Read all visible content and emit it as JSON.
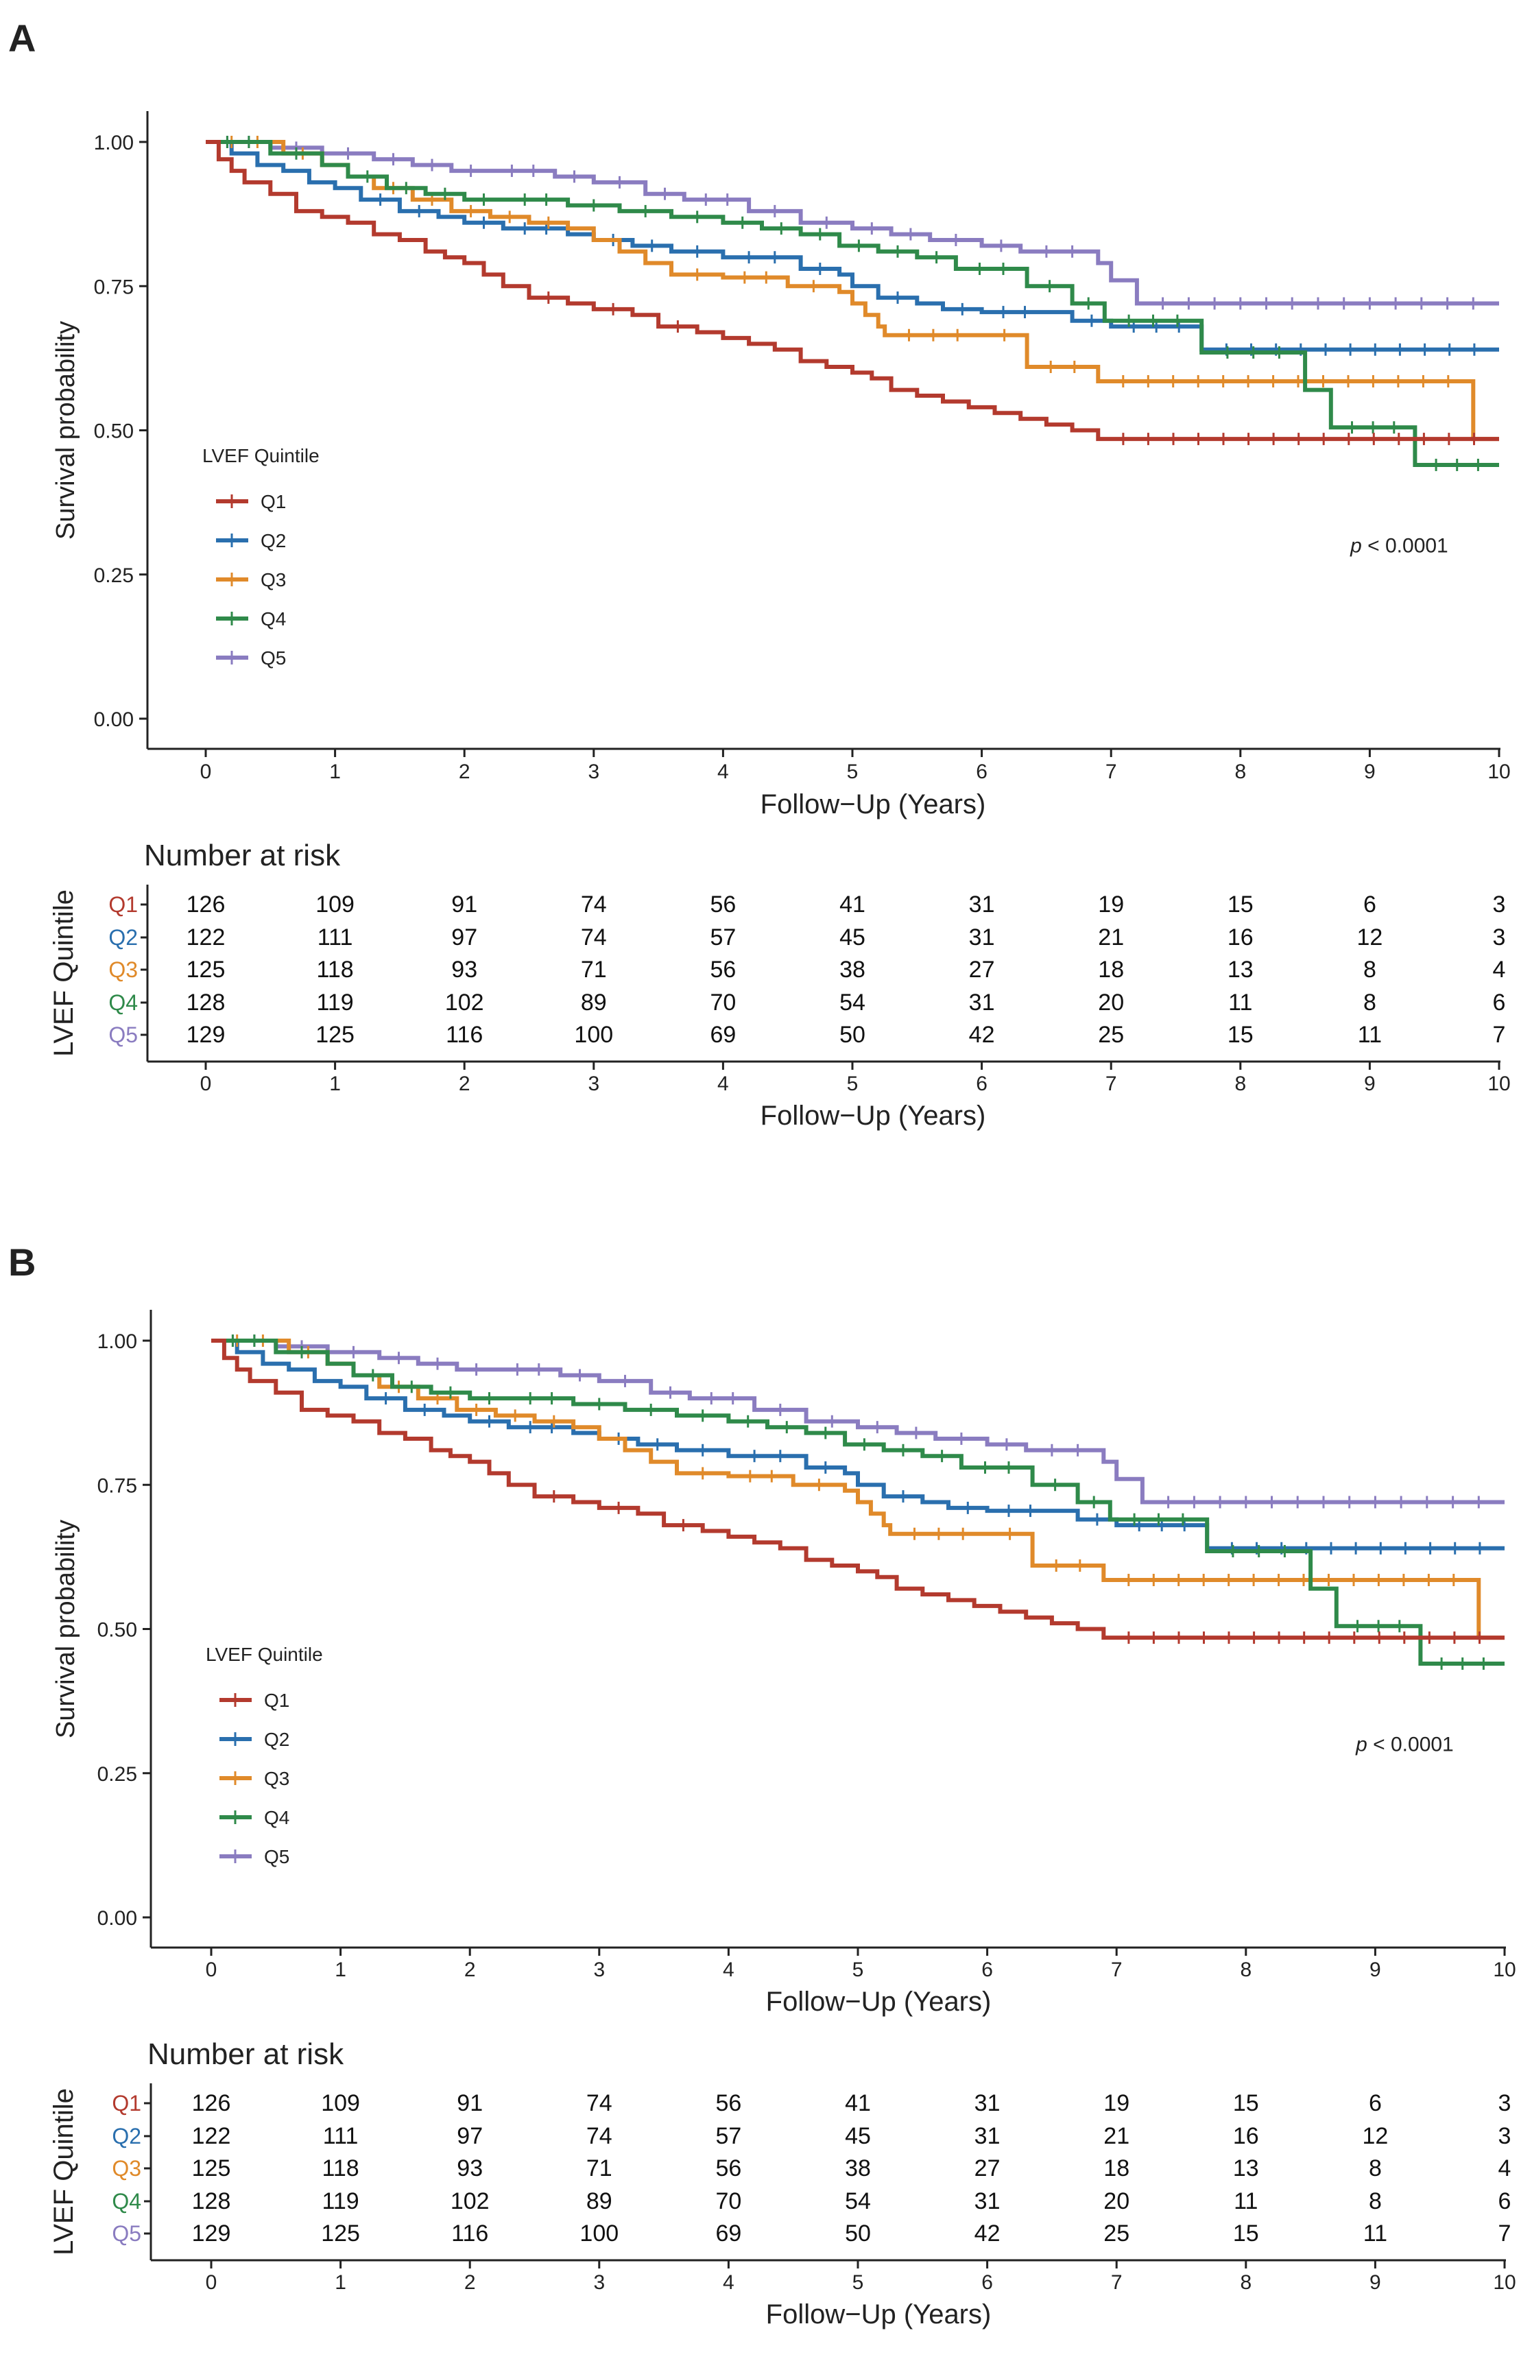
{
  "colors": {
    "Q1": "#b33a2e",
    "Q2": "#2a6fae",
    "Q3": "#e08a2a",
    "Q4": "#2f8a4a",
    "Q5": "#8a7cc0",
    "axis": "#222222"
  },
  "panels": [
    {
      "label": "A",
      "ylabel": "Survival probability",
      "xlabel": "Follow−Up (Years)",
      "legend_title": "LVEF Quintile",
      "legend": [
        "Q1",
        "Q2",
        "Q3",
        "Q4",
        "Q5"
      ],
      "pvalue_p": "p",
      "pvalue_rest": " < 0.0001",
      "yticks": [
        "0.00",
        "0.25",
        "0.50",
        "0.75",
        "1.00"
      ],
      "xticks": [
        "0",
        "1",
        "2",
        "3",
        "4",
        "5",
        "6",
        "7",
        "8",
        "9",
        "10"
      ],
      "risk_title": "Number at risk",
      "risk_ylabel": "LVEF Quintile",
      "risk_xlabel": "Follow−Up (Years)"
    },
    {
      "label": "B",
      "ylabel": "Survival probability",
      "xlabel": "Follow−Up (Years)",
      "legend_title": "LVEF Quintile",
      "legend": [
        "Q1",
        "Q2",
        "Q3",
        "Q4",
        "Q5"
      ],
      "pvalue_p": "p",
      "pvalue_rest": " < 0.0001",
      "yticks": [
        "0.00",
        "0.25",
        "0.50",
        "0.75",
        "1.00"
      ],
      "xticks": [
        "0",
        "1",
        "2",
        "3",
        "4",
        "5",
        "6",
        "7",
        "8",
        "9",
        "10"
      ],
      "risk_title": "Number at risk",
      "risk_ylabel": "LVEF Quintile",
      "risk_xlabel": "Follow−Up (Years)"
    }
  ],
  "chart_data": [
    {
      "type": "line",
      "title": "A",
      "xlabel": "Follow-Up (Years)",
      "ylabel": "Survival probability",
      "xlim": [
        0,
        10
      ],
      "ylim": [
        0,
        1
      ],
      "series": [
        {
          "name": "Q1",
          "x": [
            0,
            0.1,
            0.2,
            0.3,
            0.5,
            0.7,
            0.9,
            1.1,
            1.3,
            1.5,
            1.7,
            1.85,
            2.0,
            2.15,
            2.3,
            2.5,
            2.8,
            3.0,
            3.3,
            3.5,
            3.8,
            4.0,
            4.2,
            4.4,
            4.6,
            4.8,
            5.0,
            5.15,
            5.3,
            5.5,
            5.7,
            5.9,
            6.1,
            6.3,
            6.5,
            6.7,
            6.9,
            10
          ],
          "y": [
            1,
            0.97,
            0.95,
            0.93,
            0.91,
            0.88,
            0.87,
            0.86,
            0.84,
            0.83,
            0.81,
            0.8,
            0.79,
            0.77,
            0.75,
            0.73,
            0.72,
            0.71,
            0.7,
            0.68,
            0.67,
            0.66,
            0.65,
            0.64,
            0.62,
            0.61,
            0.6,
            0.59,
            0.57,
            0.56,
            0.55,
            0.54,
            0.53,
            0.52,
            0.51,
            0.5,
            0.485,
            0.485
          ]
        },
        {
          "name": "Q2",
          "x": [
            0,
            0.2,
            0.4,
            0.6,
            0.8,
            1.0,
            1.2,
            1.5,
            1.8,
            2.0,
            2.3,
            2.8,
            3.0,
            3.3,
            3.6,
            4.0,
            4.6,
            4.9,
            5.0,
            5.2,
            5.5,
            5.7,
            6.0,
            6.5,
            6.7,
            7.0,
            7.7,
            10
          ],
          "y": [
            1,
            0.98,
            0.96,
            0.95,
            0.93,
            0.92,
            0.9,
            0.88,
            0.87,
            0.86,
            0.85,
            0.84,
            0.83,
            0.82,
            0.81,
            0.8,
            0.78,
            0.77,
            0.75,
            0.73,
            0.72,
            0.71,
            0.705,
            0.705,
            0.69,
            0.68,
            0.64,
            0.64
          ]
        },
        {
          "name": "Q3",
          "x": [
            0,
            0.6,
            0.9,
            1.1,
            1.3,
            1.6,
            1.9,
            2.2,
            2.5,
            2.8,
            3.0,
            3.2,
            3.4,
            3.6,
            4.0,
            4.5,
            4.9,
            5.0,
            5.1,
            5.2,
            5.25,
            6.0,
            6.35,
            6.9,
            9.8,
            10
          ],
          "y": [
            1,
            0.98,
            0.96,
            0.94,
            0.92,
            0.9,
            0.88,
            0.87,
            0.86,
            0.85,
            0.83,
            0.81,
            0.79,
            0.77,
            0.765,
            0.75,
            0.74,
            0.72,
            0.7,
            0.68,
            0.665,
            0.665,
            0.61,
            0.585,
            0.485,
            0.485
          ]
        },
        {
          "name": "Q4",
          "x": [
            0,
            0.5,
            0.9,
            1.1,
            1.4,
            1.7,
            2.0,
            2.3,
            2.8,
            3.2,
            3.6,
            4.0,
            4.3,
            4.6,
            4.9,
            5.2,
            5.5,
            5.8,
            6.35,
            6.7,
            6.95,
            7.7,
            8.5,
            8.7,
            9.35,
            10
          ],
          "y": [
            1,
            0.98,
            0.96,
            0.94,
            0.92,
            0.91,
            0.9,
            0.9,
            0.89,
            0.88,
            0.87,
            0.86,
            0.85,
            0.84,
            0.82,
            0.81,
            0.8,
            0.78,
            0.75,
            0.72,
            0.69,
            0.635,
            0.57,
            0.505,
            0.44,
            0.44
          ]
        },
        {
          "name": "Q5",
          "x": [
            0,
            0.5,
            0.9,
            1.3,
            1.6,
            1.9,
            2.2,
            2.7,
            3.0,
            3.4,
            3.7,
            4.2,
            4.6,
            5.0,
            5.3,
            5.6,
            6.0,
            6.3,
            6.9,
            7.0,
            7.2,
            10
          ],
          "y": [
            1,
            0.99,
            0.98,
            0.97,
            0.96,
            0.95,
            0.95,
            0.94,
            0.93,
            0.91,
            0.9,
            0.88,
            0.86,
            0.85,
            0.84,
            0.83,
            0.82,
            0.81,
            0.79,
            0.76,
            0.72,
            0.72
          ]
        }
      ],
      "annotation": "p < 0.0001",
      "risk_table": {
        "time": [
          0,
          1,
          2,
          3,
          4,
          5,
          6,
          7,
          8,
          9,
          10
        ],
        "rows": [
          {
            "name": "Q1",
            "values": [
              "126",
              "109",
              "91",
              "74",
              "56",
              "41",
              "31",
              "19",
              "15",
              "6",
              "3"
            ]
          },
          {
            "name": "Q2",
            "values": [
              "122",
              "111",
              "97",
              "74",
              "57",
              "45",
              "31",
              "21",
              "16",
              "12",
              "3"
            ]
          },
          {
            "name": "Q3",
            "values": [
              "125",
              "118",
              "93",
              "71",
              "56",
              "38",
              "27",
              "18",
              "13",
              "8",
              "4"
            ]
          },
          {
            "name": "Q4",
            "values": [
              "128",
              "119",
              "102",
              "89",
              "70",
              "54",
              "31",
              "20",
              "11",
              "8",
              "6"
            ]
          },
          {
            "name": "Q5",
            "values": [
              "129",
              "125",
              "116",
              "100",
              "69",
              "50",
              "42",
              "25",
              "15",
              "11",
              "7"
            ]
          }
        ]
      }
    },
    {
      "type": "line",
      "title": "B",
      "xlabel": "Follow-Up (Years)",
      "ylabel": "Survival probability",
      "xlim": [
        0,
        10
      ],
      "ylim": [
        0,
        1
      ],
      "series": [
        {
          "name": "Q1",
          "x": [
            0,
            0.1,
            0.2,
            0.3,
            0.5,
            0.7,
            0.9,
            1.1,
            1.3,
            1.5,
            1.7,
            1.85,
            2.0,
            2.15,
            2.3,
            2.5,
            2.8,
            3.0,
            3.3,
            3.5,
            3.8,
            4.0,
            4.2,
            4.4,
            4.6,
            4.8,
            5.0,
            5.15,
            5.3,
            5.5,
            5.7,
            5.9,
            6.1,
            6.3,
            6.5,
            6.7,
            6.9,
            10
          ],
          "y": [
            1,
            0.97,
            0.95,
            0.93,
            0.91,
            0.88,
            0.87,
            0.86,
            0.84,
            0.83,
            0.81,
            0.8,
            0.79,
            0.77,
            0.75,
            0.73,
            0.72,
            0.71,
            0.7,
            0.68,
            0.67,
            0.66,
            0.65,
            0.64,
            0.62,
            0.61,
            0.6,
            0.59,
            0.57,
            0.56,
            0.55,
            0.54,
            0.53,
            0.52,
            0.51,
            0.5,
            0.485,
            0.485
          ]
        },
        {
          "name": "Q2",
          "x": [
            0,
            0.2,
            0.4,
            0.6,
            0.8,
            1.0,
            1.2,
            1.5,
            1.8,
            2.0,
            2.3,
            2.8,
            3.0,
            3.3,
            3.6,
            4.0,
            4.6,
            4.9,
            5.0,
            5.2,
            5.5,
            5.7,
            6.0,
            6.5,
            6.7,
            7.0,
            7.7,
            10
          ],
          "y": [
            1,
            0.98,
            0.96,
            0.95,
            0.93,
            0.92,
            0.9,
            0.88,
            0.87,
            0.86,
            0.85,
            0.84,
            0.83,
            0.82,
            0.81,
            0.8,
            0.78,
            0.77,
            0.75,
            0.73,
            0.72,
            0.71,
            0.705,
            0.705,
            0.69,
            0.68,
            0.64,
            0.64
          ]
        },
        {
          "name": "Q3",
          "x": [
            0,
            0.6,
            0.9,
            1.1,
            1.3,
            1.6,
            1.9,
            2.2,
            2.5,
            2.8,
            3.0,
            3.2,
            3.4,
            3.6,
            4.0,
            4.5,
            4.9,
            5.0,
            5.1,
            5.2,
            5.25,
            6.0,
            6.35,
            6.9,
            9.8,
            10
          ],
          "y": [
            1,
            0.98,
            0.96,
            0.94,
            0.92,
            0.9,
            0.88,
            0.87,
            0.86,
            0.85,
            0.83,
            0.81,
            0.79,
            0.77,
            0.765,
            0.75,
            0.74,
            0.72,
            0.7,
            0.68,
            0.665,
            0.665,
            0.61,
            0.585,
            0.485,
            0.485
          ]
        },
        {
          "name": "Q4",
          "x": [
            0,
            0.5,
            0.9,
            1.1,
            1.4,
            1.7,
            2.0,
            2.3,
            2.8,
            3.2,
            3.6,
            4.0,
            4.3,
            4.6,
            4.9,
            5.2,
            5.5,
            5.8,
            6.35,
            6.7,
            6.95,
            7.7,
            8.5,
            8.7,
            9.35,
            10
          ],
          "y": [
            1,
            0.98,
            0.96,
            0.94,
            0.92,
            0.91,
            0.9,
            0.9,
            0.89,
            0.88,
            0.87,
            0.86,
            0.85,
            0.84,
            0.82,
            0.81,
            0.8,
            0.78,
            0.75,
            0.72,
            0.69,
            0.635,
            0.57,
            0.505,
            0.44,
            0.44
          ]
        },
        {
          "name": "Q5",
          "x": [
            0,
            0.5,
            0.9,
            1.3,
            1.6,
            1.9,
            2.2,
            2.7,
            3.0,
            3.4,
            3.7,
            4.2,
            4.6,
            5.0,
            5.3,
            5.6,
            6.0,
            6.3,
            6.9,
            7.0,
            7.2,
            10
          ],
          "y": [
            1,
            0.99,
            0.98,
            0.97,
            0.96,
            0.95,
            0.95,
            0.94,
            0.93,
            0.91,
            0.9,
            0.88,
            0.86,
            0.85,
            0.84,
            0.83,
            0.82,
            0.81,
            0.79,
            0.76,
            0.72,
            0.72
          ]
        }
      ],
      "annotation": "p < 0.0001",
      "risk_table": {
        "time": [
          0,
          1,
          2,
          3,
          4,
          5,
          6,
          7,
          8,
          9,
          10
        ],
        "rows": [
          {
            "name": "Q1",
            "values": [
              "126",
              "109",
              "91",
              "74",
              "56",
              "41",
              "31",
              "19",
              "15",
              "6",
              "3"
            ]
          },
          {
            "name": "Q2",
            "values": [
              "122",
              "111",
              "97",
              "74",
              "57",
              "45",
              "31",
              "21",
              "16",
              "12",
              "3"
            ]
          },
          {
            "name": "Q3",
            "values": [
              "125",
              "118",
              "93",
              "71",
              "56",
              "38",
              "27",
              "18",
              "13",
              "8",
              "4"
            ]
          },
          {
            "name": "Q4",
            "values": [
              "128",
              "119",
              "102",
              "89",
              "70",
              "54",
              "31",
              "20",
              "11",
              "8",
              "6"
            ]
          },
          {
            "name": "Q5",
            "values": [
              "129",
              "125",
              "116",
              "100",
              "69",
              "50",
              "42",
              "25",
              "15",
              "11",
              "7"
            ]
          }
        ]
      }
    }
  ]
}
